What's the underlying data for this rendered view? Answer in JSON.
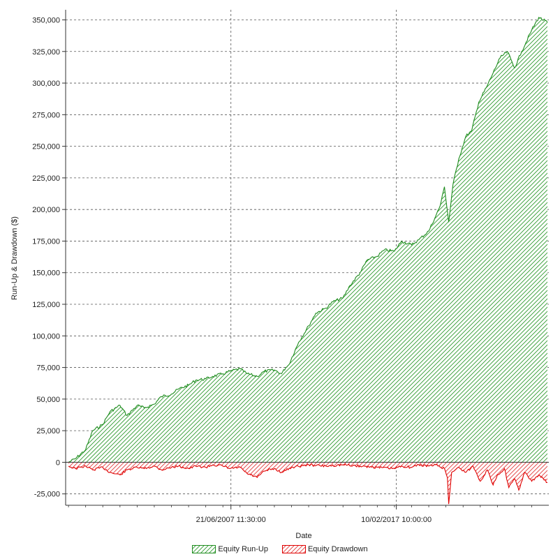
{
  "chart_data": {
    "type": "area",
    "title": "",
    "xlabel": "Date",
    "ylabel": "Run-Up & Drawdown ($)",
    "xlim": [
      "1997-11-01",
      "2025-12-31"
    ],
    "ylim": [
      -34000,
      358000
    ],
    "y_ticks": [
      {
        "value": 350000,
        "label": "350,000"
      },
      {
        "value": 325000,
        "label": "325,000"
      },
      {
        "value": 300000,
        "label": "300,000"
      },
      {
        "value": 275000,
        "label": "275,000"
      },
      {
        "value": 250000,
        "label": "250,000"
      },
      {
        "value": 225000,
        "label": "225,000"
      },
      {
        "value": 200000,
        "label": "200,000"
      },
      {
        "value": 175000,
        "label": "175,000"
      },
      {
        "value": 150000,
        "label": "150,000"
      },
      {
        "value": 125000,
        "label": "125,000"
      },
      {
        "value": 100000,
        "label": "100,000"
      },
      {
        "value": 75000,
        "label": "75,000"
      },
      {
        "value": 50000,
        "label": "50,000"
      },
      {
        "value": 25000,
        "label": "25,000"
      },
      {
        "value": 0,
        "label": "0"
      },
      {
        "value": -25000,
        "label": "-25,000"
      }
    ],
    "x_ticks": [
      {
        "value": "2007-06-21",
        "label": "21/06/2007 11:30:00"
      },
      {
        "value": "2017-02-10",
        "label": "10/02/2017 10:00:00"
      }
    ],
    "grid": true,
    "legend_position": "bottom-center",
    "series": [
      {
        "name": "Equity Run-Up",
        "color": "#1e8c1e",
        "x": [
          "1998-01-01",
          "1998-06-01",
          "1999-01-01",
          "1999-06-01",
          "2000-01-01",
          "2000-06-01",
          "2001-01-01",
          "2001-06-01",
          "2002-01-01",
          "2002-06-01",
          "2003-01-01",
          "2003-06-01",
          "2004-01-01",
          "2004-06-01",
          "2005-01-01",
          "2005-06-01",
          "2006-01-01",
          "2006-06-01",
          "2007-01-01",
          "2007-06-01",
          "2008-01-01",
          "2008-06-01",
          "2009-01-01",
          "2009-06-01",
          "2010-01-01",
          "2010-06-01",
          "2010-09-01",
          "2010-11-01",
          "2011-06-01",
          "2012-01-01",
          "2012-06-01",
          "2013-01-01",
          "2013-06-01",
          "2014-01-01",
          "2014-06-01",
          "2015-01-01",
          "2015-06-01",
          "2016-01-01",
          "2016-06-01",
          "2017-01-01",
          "2017-06-01",
          "2018-01-01",
          "2018-06-01",
          "2019-01-01",
          "2019-06-01",
          "2019-09-01",
          "2019-12-01",
          "2020-03-01",
          "2020-06-01",
          "2020-10-01",
          "2021-03-01",
          "2021-07-01",
          "2021-12-01",
          "2022-06-01",
          "2022-10-01",
          "2023-03-01",
          "2023-08-01",
          "2024-01-01",
          "2024-06-01",
          "2025-01-01",
          "2025-06-01",
          "2025-12-01"
        ],
        "values": [
          0,
          3000,
          10000,
          25000,
          30000,
          40000,
          45000,
          37000,
          45000,
          43000,
          46000,
          52000,
          54000,
          58000,
          61000,
          65000,
          66000,
          68000,
          70000,
          72000,
          74000,
          70000,
          68000,
          72000,
          73000,
          70000,
          75000,
          77000,
          95000,
          108000,
          118000,
          122000,
          127000,
          130000,
          140000,
          150000,
          160000,
          163000,
          168000,
          167000,
          175000,
          172000,
          176000,
          183000,
          195000,
          203000,
          218000,
          190000,
          220000,
          240000,
          258000,
          262000,
          285000,
          298000,
          308000,
          320000,
          325000,
          312000,
          325000,
          342000,
          352000,
          348000
        ]
      },
      {
        "name": "Equity Drawdown",
        "color": "#e00000",
        "x": [
          "1998-01-01",
          "1998-06-01",
          "1999-01-01",
          "1999-06-01",
          "2000-01-01",
          "2000-06-01",
          "2001-01-01",
          "2001-06-01",
          "2002-01-01",
          "2002-06-01",
          "2003-01-01",
          "2003-06-01",
          "2004-01-01",
          "2004-06-01",
          "2005-01-01",
          "2005-06-01",
          "2006-01-01",
          "2006-06-01",
          "2007-01-01",
          "2007-06-01",
          "2008-01-01",
          "2008-06-01",
          "2009-01-01",
          "2009-06-01",
          "2010-01-01",
          "2010-06-01",
          "2011-01-01",
          "2012-01-01",
          "2013-01-01",
          "2014-01-01",
          "2015-01-01",
          "2016-01-01",
          "2017-01-01",
          "2017-06-01",
          "2018-01-01",
          "2018-06-01",
          "2019-01-01",
          "2019-06-01",
          "2019-12-01",
          "2020-02-01",
          "2020-03-01",
          "2020-05-01",
          "2020-10-01",
          "2021-03-01",
          "2021-08-01",
          "2022-01-01",
          "2022-06-01",
          "2022-10-01",
          "2023-01-01",
          "2023-06-01",
          "2023-09-01",
          "2024-01-01",
          "2024-04-01",
          "2024-08-01",
          "2025-01-01",
          "2025-06-01",
          "2025-12-01"
        ],
        "values": [
          -3000,
          -5000,
          -3000,
          -6000,
          -4000,
          -8000,
          -10000,
          -6000,
          -4000,
          -5000,
          -3000,
          -6000,
          -4000,
          -3000,
          -5000,
          -3000,
          -4000,
          -2000,
          -3000,
          -5000,
          -4000,
          -9000,
          -12000,
          -7000,
          -5000,
          -8000,
          -4000,
          -2000,
          -3000,
          -2000,
          -3000,
          -4000,
          -5000,
          -3000,
          -4000,
          -2000,
          -3000,
          -2000,
          -5000,
          -12000,
          -33000,
          -8000,
          -4000,
          -8000,
          -3000,
          -15000,
          -6000,
          -18000,
          -10000,
          -5000,
          -20000,
          -13000,
          -22000,
          -8000,
          -15000,
          -10000,
          -16000
        ]
      }
    ]
  }
}
